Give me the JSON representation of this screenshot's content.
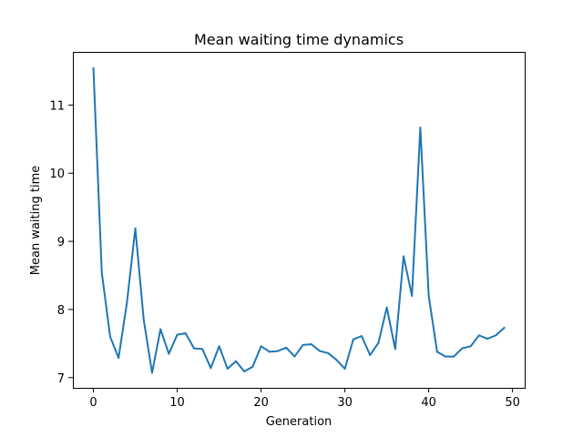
{
  "chart_data": {
    "type": "line",
    "title": "Mean waiting time dynamics",
    "xlabel": "Generation",
    "ylabel": "Mean waiting time",
    "xlim": [
      -2.45,
      51.45
    ],
    "ylim": [
      6.85,
      11.78
    ],
    "xticks": [
      0,
      10,
      20,
      30,
      40,
      50
    ],
    "yticks": [
      7,
      8,
      9,
      10,
      11
    ],
    "grid": false,
    "series": [
      {
        "color": "#1f77b4",
        "x": [
          0,
          1,
          2,
          3,
          4,
          5,
          6,
          7,
          8,
          9,
          10,
          11,
          12,
          13,
          14,
          15,
          16,
          17,
          18,
          19,
          20,
          21,
          22,
          23,
          24,
          25,
          26,
          27,
          28,
          29,
          30,
          31,
          32,
          33,
          34,
          35,
          36,
          37,
          38,
          39,
          40,
          41,
          42,
          43,
          44,
          45,
          46,
          47,
          48,
          49
        ],
        "y": [
          11.54,
          8.54,
          7.6,
          7.29,
          8.1,
          9.19,
          7.85,
          7.07,
          7.71,
          7.35,
          7.63,
          7.65,
          7.43,
          7.42,
          7.14,
          7.46,
          7.13,
          7.24,
          7.09,
          7.16,
          7.46,
          7.38,
          7.39,
          7.44,
          7.31,
          7.48,
          7.49,
          7.39,
          7.36,
          7.26,
          7.13,
          7.56,
          7.61,
          7.33,
          7.51,
          8.03,
          7.42,
          8.78,
          8.2,
          10.67,
          8.2,
          7.38,
          7.31,
          7.31,
          7.43,
          7.46,
          7.62,
          7.57,
          7.62,
          7.73
        ]
      }
    ]
  }
}
